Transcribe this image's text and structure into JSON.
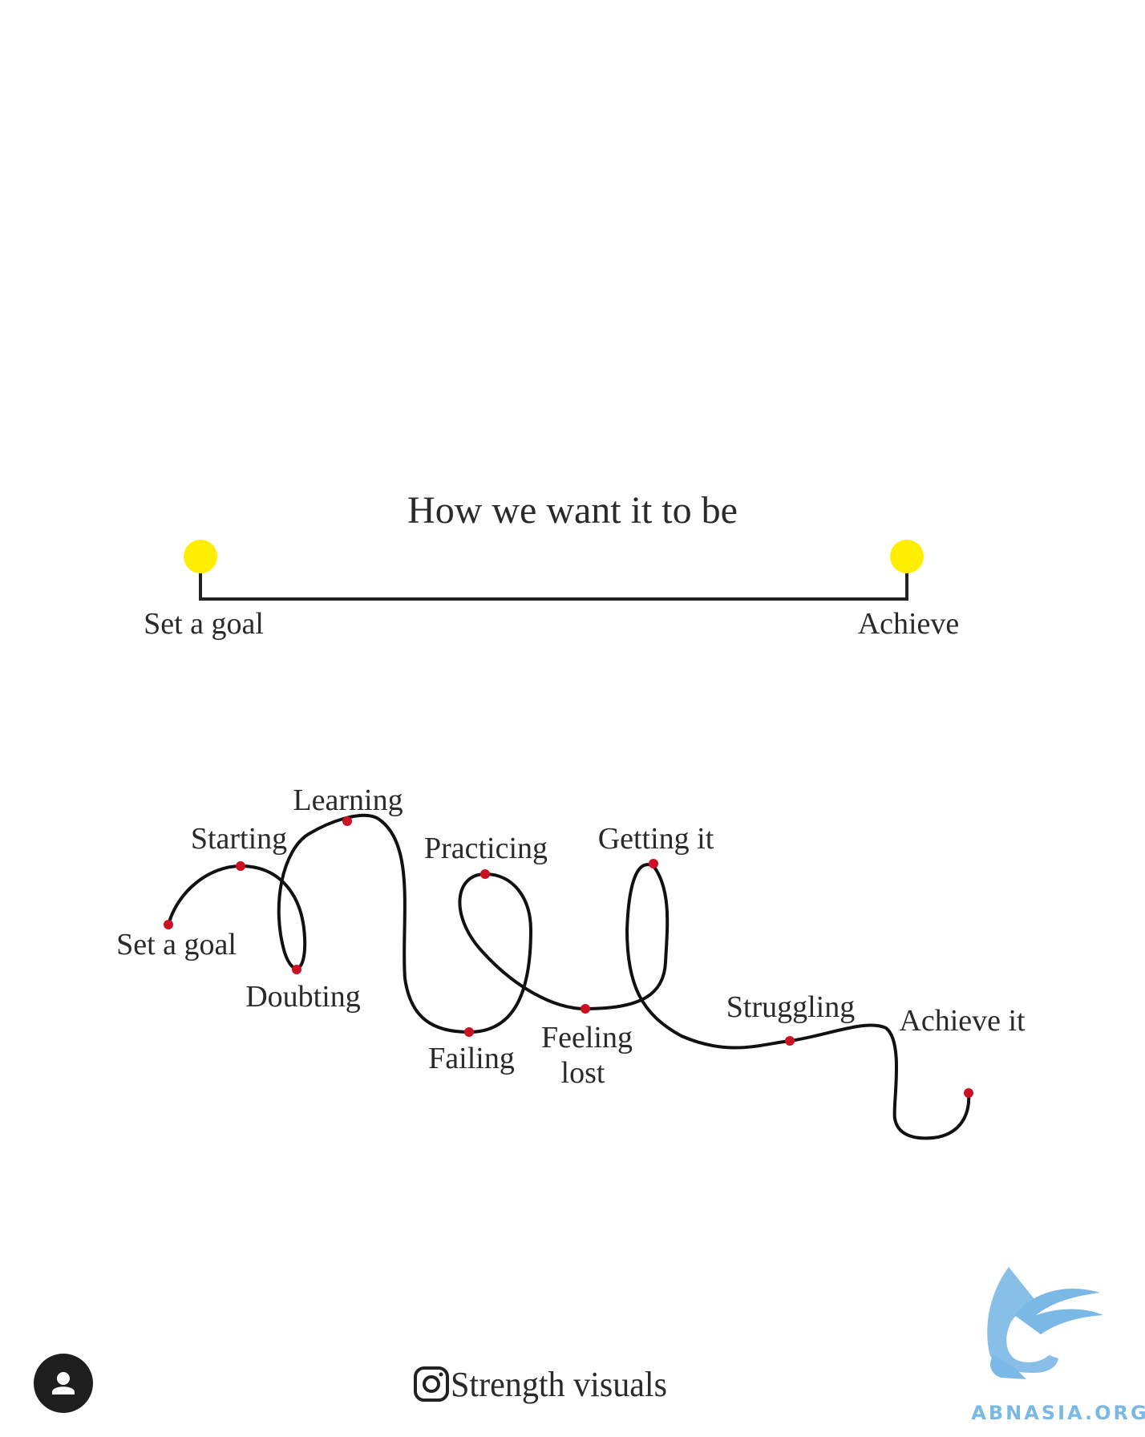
{
  "ideal": {
    "title": "How we want it to be",
    "start_label": "Set a goal",
    "end_label": "Achieve",
    "dot_color": "#ffee00"
  },
  "reality": {
    "labels": {
      "set_a_goal": "Set a goal",
      "starting": "Starting",
      "doubting": "Doubting",
      "learning": "Learning",
      "failing": "Failing",
      "practicing": "Practicing",
      "feeling": "Feeling",
      "lost": "lost",
      "getting_it": "Getting it",
      "struggling": "Struggling",
      "achieve_it": "Achieve it"
    },
    "point_color": "#cc1122",
    "line_color": "#111111"
  },
  "credit": {
    "handle": "Strength visuals",
    "icon": "instagram-icon"
  },
  "watermark": {
    "text": "ABNASIA.ORG",
    "color": "#7ab8e6",
    "icon": "griffin-logo-icon"
  },
  "user_button": {
    "icon": "user-icon"
  }
}
